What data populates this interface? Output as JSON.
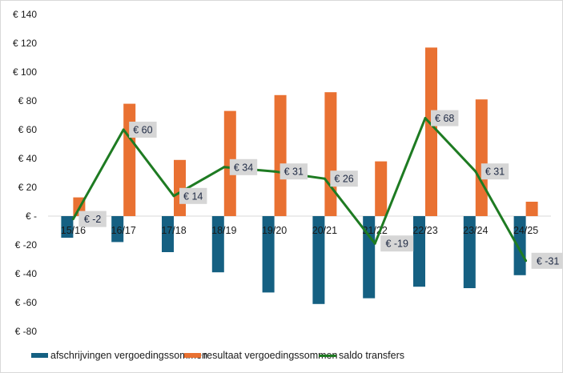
{
  "chart_data": {
    "type": "bar",
    "title": "",
    "xlabel": "",
    "ylabel": "",
    "categories": [
      "15/16",
      "16/17",
      "17/18",
      "18/19",
      "19/20",
      "20/21",
      "21/22",
      "22/23",
      "23/24",
      "24/25"
    ],
    "ylim": [
      -80,
      140
    ],
    "yticks": [
      140,
      120,
      100,
      80,
      60,
      40,
      20,
      0,
      -20,
      -40,
      -60,
      -80
    ],
    "ytick_labels": [
      "€ 140",
      "€ 120",
      "€ 100",
      "€ 80",
      "€ 60",
      "€ 40",
      "€ 20",
      "€ -",
      "€ -20",
      "€ -40",
      "€ -60",
      "€ -80"
    ],
    "grid": false,
    "legend_position": "bottom",
    "series": [
      {
        "name": "afschrijvingen vergoedingssommen",
        "type": "bar",
        "color": "#156082",
        "values": [
          -15,
          -18,
          -25,
          -39,
          -53,
          -61,
          -57,
          -49,
          -50,
          -41
        ]
      },
      {
        "name": "resultaat vergoedingssommen",
        "type": "bar",
        "color": "#E97132",
        "values": [
          13,
          78,
          39,
          73,
          84,
          86,
          38,
          117,
          81,
          10
        ]
      },
      {
        "name": "saldo transfers",
        "type": "line",
        "color": "#1E7B22",
        "values": [
          -2,
          60,
          14,
          34,
          31,
          26,
          -19,
          68,
          31,
          -31
        ],
        "data_labels": [
          "€ -2",
          "€ 60",
          "€ 14",
          "€ 34",
          "€ 31",
          "€ 26",
          "€ -19",
          "€ 68",
          "€ 31",
          "€ -31"
        ]
      }
    ]
  }
}
